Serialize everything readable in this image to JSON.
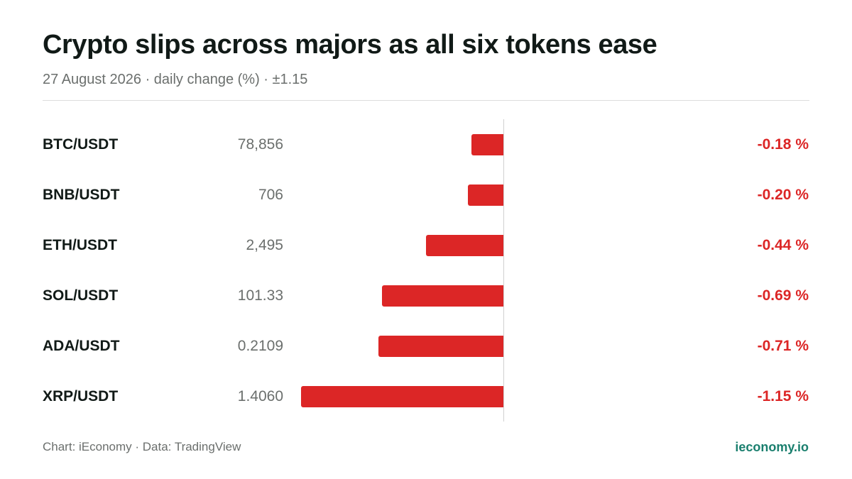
{
  "header": {
    "title": "Crypto slips across majors as all six tokens ease",
    "subtitle": "27 August 2026 · daily change (%) · ±1.15"
  },
  "footer": {
    "source": "Chart: iEconomy · Data: TradingView",
    "brand": "ieconomy.io"
  },
  "colors": {
    "negative": "#dc2626",
    "brand": "#1a7f6e",
    "muted_text": "#6b6f6d"
  },
  "chart_data": {
    "type": "bar",
    "orientation": "horizontal",
    "title": "Crypto slips across majors as all six tokens ease",
    "subtitle": "27 August 2026 · daily change (%) · ±1.15",
    "categories": [
      "BTC/USDT",
      "BNB/USDT",
      "ETH/USDT",
      "SOL/USDT",
      "ADA/USDT",
      "XRP/USDT"
    ],
    "prices": [
      "78,856",
      "706",
      "2,495",
      "101.33",
      "0.2109",
      "1.4060"
    ],
    "values": [
      -0.18,
      -0.2,
      -0.44,
      -0.69,
      -0.71,
      -1.15
    ],
    "value_labels": [
      "-0.18 %",
      "-0.20 %",
      "-0.44 %",
      "-0.69 %",
      "-0.71 %",
      "-1.15 %"
    ],
    "xlim": [
      -1.15,
      1.15
    ],
    "grid": false,
    "legend": "none"
  }
}
